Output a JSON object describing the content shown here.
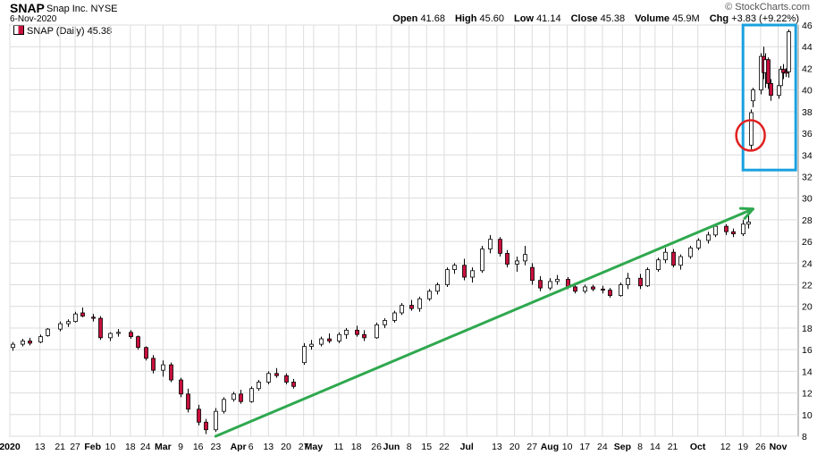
{
  "header": {
    "symbol": "SNAP",
    "company": "Snap Inc.",
    "exchange": "NYSE",
    "date": "6-Nov-2020",
    "copyright": "© StockCharts.com",
    "quote": [
      {
        "label": "Open",
        "value": "41.68"
      },
      {
        "label": "High",
        "value": "45.60"
      },
      {
        "label": "Low",
        "value": "41.14"
      },
      {
        "label": "Close",
        "value": "45.38"
      },
      {
        "label": "Volume",
        "value": "45.9M"
      },
      {
        "label": "Chg",
        "value": "+3.83 (+9.22%)"
      }
    ]
  },
  "legend": {
    "text": "SNAP (Daily) 45.38"
  },
  "colors": {
    "up": "#ffffff",
    "down": "#c8103d",
    "wick": "#000000",
    "arrow": "#2fa84f",
    "box": "#1aa1e0",
    "circle": "#e02020",
    "grid": "#dcdcdc"
  },
  "chart_data": {
    "type": "candlestick",
    "title": "SNAP Snap Inc. NYSE",
    "ylim": [
      8,
      46
    ],
    "y_ticks": [
      8,
      10,
      12,
      14,
      16,
      18,
      20,
      22,
      24,
      26,
      28,
      30,
      32,
      34,
      36,
      38,
      40,
      42,
      44,
      46
    ],
    "x_range": [
      "2020-01-01",
      "2020-11-10"
    ],
    "x_ticks": [
      {
        "label": "2020",
        "date": "2020-01-01",
        "bold": true
      },
      {
        "label": "13",
        "date": "2020-01-13"
      },
      {
        "label": "21",
        "date": "2020-01-21"
      },
      {
        "label": "27",
        "date": "2020-01-27"
      },
      {
        "label": "Feb",
        "date": "2020-02-03",
        "bold": true
      },
      {
        "label": "10",
        "date": "2020-02-10"
      },
      {
        "label": "18",
        "date": "2020-02-18"
      },
      {
        "label": "24",
        "date": "2020-02-24"
      },
      {
        "label": "Mar",
        "date": "2020-03-02",
        "bold": true
      },
      {
        "label": "9",
        "date": "2020-03-09"
      },
      {
        "label": "16",
        "date": "2020-03-16"
      },
      {
        "label": "23",
        "date": "2020-03-23"
      },
      {
        "label": "Apr",
        "date": "2020-04-01",
        "bold": true
      },
      {
        "label": "6",
        "date": "2020-04-06"
      },
      {
        "label": "13",
        "date": "2020-04-13"
      },
      {
        "label": "20",
        "date": "2020-04-20"
      },
      {
        "label": "27",
        "date": "2020-04-27"
      },
      {
        "label": "May",
        "date": "2020-05-01",
        "bold": true
      },
      {
        "label": "11",
        "date": "2020-05-11"
      },
      {
        "label": "18",
        "date": "2020-05-18"
      },
      {
        "label": "26",
        "date": "2020-05-26"
      },
      {
        "label": "Jun",
        "date": "2020-06-01",
        "bold": true
      },
      {
        "label": "8",
        "date": "2020-06-08"
      },
      {
        "label": "15",
        "date": "2020-06-15"
      },
      {
        "label": "22",
        "date": "2020-06-22"
      },
      {
        "label": "Jul",
        "date": "2020-07-01",
        "bold": true
      },
      {
        "label": "13",
        "date": "2020-07-13"
      },
      {
        "label": "20",
        "date": "2020-07-20"
      },
      {
        "label": "27",
        "date": "2020-07-27"
      },
      {
        "label": "Aug",
        "date": "2020-08-03",
        "bold": true
      },
      {
        "label": "10",
        "date": "2020-08-10"
      },
      {
        "label": "17",
        "date": "2020-08-17"
      },
      {
        "label": "24",
        "date": "2020-08-24"
      },
      {
        "label": "Sep",
        "date": "2020-09-01",
        "bold": true
      },
      {
        "label": "8",
        "date": "2020-09-08"
      },
      {
        "label": "14",
        "date": "2020-09-14"
      },
      {
        "label": "21",
        "date": "2020-09-21"
      },
      {
        "label": "Oct",
        "date": "2020-10-01",
        "bold": true
      },
      {
        "label": "12",
        "date": "2020-10-12"
      },
      {
        "label": "19",
        "date": "2020-10-19"
      },
      {
        "label": "26",
        "date": "2020-10-26"
      },
      {
        "label": "Nov",
        "date": "2020-11-02",
        "bold": true
      }
    ],
    "grid": true,
    "candles": [
      {
        "date": "2020-01-02",
        "open": 16.2,
        "high": 16.7,
        "low": 15.9,
        "close": 16.5
      },
      {
        "date": "2020-01-06",
        "open": 16.5,
        "high": 17.0,
        "low": 16.3,
        "close": 16.8
      },
      {
        "date": "2020-01-09",
        "open": 16.8,
        "high": 17.1,
        "low": 16.4,
        "close": 16.6
      },
      {
        "date": "2020-01-13",
        "open": 16.7,
        "high": 17.4,
        "low": 16.6,
        "close": 17.2
      },
      {
        "date": "2020-01-16",
        "open": 17.3,
        "high": 18.0,
        "low": 17.2,
        "close": 17.9
      },
      {
        "date": "2020-01-21",
        "open": 17.9,
        "high": 18.6,
        "low": 17.7,
        "close": 18.4
      },
      {
        "date": "2020-01-24",
        "open": 18.4,
        "high": 18.8,
        "low": 18.1,
        "close": 18.6
      },
      {
        "date": "2020-01-27",
        "open": 18.6,
        "high": 19.5,
        "low": 18.5,
        "close": 19.3
      },
      {
        "date": "2020-01-30",
        "open": 19.4,
        "high": 19.9,
        "low": 19.0,
        "close": 19.1
      },
      {
        "date": "2020-02-03",
        "open": 19.0,
        "high": 19.3,
        "low": 18.6,
        "close": 18.9
      },
      {
        "date": "2020-02-06",
        "open": 18.9,
        "high": 19.1,
        "low": 16.9,
        "close": 17.1
      },
      {
        "date": "2020-02-10",
        "open": 17.1,
        "high": 17.6,
        "low": 16.8,
        "close": 17.5
      },
      {
        "date": "2020-02-13",
        "open": 17.5,
        "high": 17.9,
        "low": 17.2,
        "close": 17.6
      },
      {
        "date": "2020-02-18",
        "open": 17.6,
        "high": 17.8,
        "low": 17.0,
        "close": 17.2
      },
      {
        "date": "2020-02-21",
        "open": 17.2,
        "high": 17.3,
        "low": 16.0,
        "close": 16.2
      },
      {
        "date": "2020-02-24",
        "open": 16.2,
        "high": 16.3,
        "low": 15.0,
        "close": 15.2
      },
      {
        "date": "2020-02-27",
        "open": 15.2,
        "high": 15.5,
        "low": 13.8,
        "close": 14.1
      },
      {
        "date": "2020-03-02",
        "open": 14.1,
        "high": 15.0,
        "low": 13.5,
        "close": 14.6
      },
      {
        "date": "2020-03-05",
        "open": 14.6,
        "high": 14.8,
        "low": 13.0,
        "close": 13.2
      },
      {
        "date": "2020-03-09",
        "open": 13.2,
        "high": 13.4,
        "low": 11.6,
        "close": 11.9
      },
      {
        "date": "2020-03-12",
        "open": 11.9,
        "high": 12.4,
        "low": 10.2,
        "close": 10.5
      },
      {
        "date": "2020-03-16",
        "open": 10.5,
        "high": 10.9,
        "low": 9.0,
        "close": 9.3
      },
      {
        "date": "2020-03-19",
        "open": 9.3,
        "high": 9.6,
        "low": 8.2,
        "close": 8.6
      },
      {
        "date": "2020-03-23",
        "open": 8.6,
        "high": 10.6,
        "low": 8.4,
        "close": 10.3
      },
      {
        "date": "2020-03-26",
        "open": 10.3,
        "high": 11.6,
        "low": 10.1,
        "close": 11.4
      },
      {
        "date": "2020-03-30",
        "open": 11.4,
        "high": 12.1,
        "low": 11.2,
        "close": 11.9
      },
      {
        "date": "2020-04-02",
        "open": 11.9,
        "high": 12.3,
        "low": 11.0,
        "close": 11.2
      },
      {
        "date": "2020-04-06",
        "open": 11.2,
        "high": 12.6,
        "low": 11.1,
        "close": 12.4
      },
      {
        "date": "2020-04-09",
        "open": 12.4,
        "high": 13.2,
        "low": 12.2,
        "close": 13.0
      },
      {
        "date": "2020-04-13",
        "open": 13.0,
        "high": 14.0,
        "low": 12.8,
        "close": 13.8
      },
      {
        "date": "2020-04-16",
        "open": 13.8,
        "high": 14.3,
        "low": 13.4,
        "close": 13.6
      },
      {
        "date": "2020-04-20",
        "open": 13.6,
        "high": 13.8,
        "low": 12.8,
        "close": 13.0
      },
      {
        "date": "2020-04-23",
        "open": 13.0,
        "high": 13.3,
        "low": 12.4,
        "close": 12.6
      },
      {
        "date": "2020-04-27",
        "open": 14.8,
        "high": 16.6,
        "low": 14.6,
        "close": 16.3
      },
      {
        "date": "2020-04-30",
        "open": 16.3,
        "high": 16.9,
        "low": 16.0,
        "close": 16.5
      },
      {
        "date": "2020-05-04",
        "open": 16.5,
        "high": 17.2,
        "low": 16.3,
        "close": 17.0
      },
      {
        "date": "2020-05-07",
        "open": 17.0,
        "high": 17.5,
        "low": 16.6,
        "close": 16.8
      },
      {
        "date": "2020-05-11",
        "open": 16.8,
        "high": 17.6,
        "low": 16.6,
        "close": 17.4
      },
      {
        "date": "2020-05-14",
        "open": 17.4,
        "high": 18.0,
        "low": 17.0,
        "close": 17.8
      },
      {
        "date": "2020-05-18",
        "open": 17.8,
        "high": 18.2,
        "low": 17.2,
        "close": 17.4
      },
      {
        "date": "2020-05-21",
        "open": 17.4,
        "high": 17.8,
        "low": 16.8,
        "close": 17.1
      },
      {
        "date": "2020-05-26",
        "open": 17.1,
        "high": 18.5,
        "low": 17.0,
        "close": 18.3
      },
      {
        "date": "2020-05-29",
        "open": 18.3,
        "high": 18.9,
        "low": 18.0,
        "close": 18.7
      },
      {
        "date": "2020-06-02",
        "open": 18.7,
        "high": 19.6,
        "low": 18.5,
        "close": 19.4
      },
      {
        "date": "2020-06-05",
        "open": 19.4,
        "high": 20.3,
        "low": 19.2,
        "close": 20.1
      },
      {
        "date": "2020-06-09",
        "open": 20.1,
        "high": 20.6,
        "low": 19.6,
        "close": 19.8
      },
      {
        "date": "2020-06-12",
        "open": 19.8,
        "high": 20.9,
        "low": 19.5,
        "close": 20.7
      },
      {
        "date": "2020-06-16",
        "open": 20.7,
        "high": 21.6,
        "low": 20.5,
        "close": 21.4
      },
      {
        "date": "2020-06-19",
        "open": 21.4,
        "high": 22.2,
        "low": 21.1,
        "close": 22.0
      },
      {
        "date": "2020-06-23",
        "open": 22.0,
        "high": 23.6,
        "low": 21.8,
        "close": 23.4
      },
      {
        "date": "2020-06-26",
        "open": 23.4,
        "high": 24.0,
        "low": 23.0,
        "close": 23.8
      },
      {
        "date": "2020-06-30",
        "open": 23.8,
        "high": 24.4,
        "low": 22.4,
        "close": 22.7
      },
      {
        "date": "2020-07-03",
        "open": 22.7,
        "high": 23.6,
        "low": 22.2,
        "close": 23.3
      },
      {
        "date": "2020-07-07",
        "open": 23.3,
        "high": 25.6,
        "low": 23.1,
        "close": 25.3
      },
      {
        "date": "2020-07-10",
        "open": 25.3,
        "high": 26.6,
        "low": 24.9,
        "close": 26.2
      },
      {
        "date": "2020-07-14",
        "open": 26.2,
        "high": 26.4,
        "low": 24.6,
        "close": 24.9
      },
      {
        "date": "2020-07-17",
        "open": 24.9,
        "high": 25.2,
        "low": 23.6,
        "close": 23.9
      },
      {
        "date": "2020-07-21",
        "open": 23.9,
        "high": 24.6,
        "low": 23.2,
        "close": 24.2
      },
      {
        "date": "2020-07-24",
        "open": 24.2,
        "high": 25.6,
        "low": 23.8,
        "close": 24.8
      },
      {
        "date": "2020-07-27",
        "open": 23.6,
        "high": 24.0,
        "low": 22.0,
        "close": 22.4
      },
      {
        "date": "2020-07-30",
        "open": 22.4,
        "high": 22.8,
        "low": 21.4,
        "close": 21.7
      },
      {
        "date": "2020-08-03",
        "open": 21.7,
        "high": 22.6,
        "low": 21.5,
        "close": 22.3
      },
      {
        "date": "2020-08-06",
        "open": 22.3,
        "high": 22.9,
        "low": 22.0,
        "close": 22.5
      },
      {
        "date": "2020-08-10",
        "open": 22.5,
        "high": 22.7,
        "low": 21.6,
        "close": 21.8
      },
      {
        "date": "2020-08-13",
        "open": 21.8,
        "high": 22.1,
        "low": 21.2,
        "close": 21.4
      },
      {
        "date": "2020-08-17",
        "open": 21.4,
        "high": 22.0,
        "low": 21.2,
        "close": 21.8
      },
      {
        "date": "2020-08-20",
        "open": 21.8,
        "high": 22.0,
        "low": 21.4,
        "close": 21.6
      },
      {
        "date": "2020-08-24",
        "open": 21.6,
        "high": 21.9,
        "low": 21.2,
        "close": 21.5
      },
      {
        "date": "2020-08-27",
        "open": 21.5,
        "high": 21.7,
        "low": 20.8,
        "close": 21.0
      },
      {
        "date": "2020-08-31",
        "open": 21.0,
        "high": 22.2,
        "low": 20.9,
        "close": 22.0
      },
      {
        "date": "2020-09-03",
        "open": 22.0,
        "high": 23.1,
        "low": 21.6,
        "close": 22.6
      },
      {
        "date": "2020-09-08",
        "open": 22.6,
        "high": 23.0,
        "low": 21.6,
        "close": 21.9
      },
      {
        "date": "2020-09-11",
        "open": 21.9,
        "high": 23.6,
        "low": 21.8,
        "close": 23.4
      },
      {
        "date": "2020-09-15",
        "open": 23.4,
        "high": 24.5,
        "low": 23.2,
        "close": 24.3
      },
      {
        "date": "2020-09-18",
        "open": 24.3,
        "high": 25.4,
        "low": 24.0,
        "close": 25.0
      },
      {
        "date": "2020-09-21",
        "open": 25.0,
        "high": 25.3,
        "low": 23.6,
        "close": 23.8
      },
      {
        "date": "2020-09-24",
        "open": 23.8,
        "high": 24.8,
        "low": 23.4,
        "close": 24.6
      },
      {
        "date": "2020-09-28",
        "open": 24.6,
        "high": 25.6,
        "low": 24.4,
        "close": 25.4
      },
      {
        "date": "2020-10-01",
        "open": 25.4,
        "high": 26.3,
        "low": 25.2,
        "close": 26.1
      },
      {
        "date": "2020-10-05",
        "open": 26.1,
        "high": 26.9,
        "low": 25.8,
        "close": 26.6
      },
      {
        "date": "2020-10-08",
        "open": 26.6,
        "high": 27.6,
        "low": 26.4,
        "close": 27.4
      },
      {
        "date": "2020-10-12",
        "open": 27.4,
        "high": 27.6,
        "low": 26.6,
        "close": 26.9
      },
      {
        "date": "2020-10-15",
        "open": 26.9,
        "high": 27.2,
        "low": 26.4,
        "close": 26.7
      },
      {
        "date": "2020-10-19",
        "open": 26.7,
        "high": 28.0,
        "low": 26.5,
        "close": 27.6
      },
      {
        "date": "2020-10-21",
        "open": 27.6,
        "high": 28.4,
        "low": 27.2,
        "close": 27.8
      },
      {
        "date": "2020-10-22",
        "open": 34.9,
        "high": 38.2,
        "low": 34.5,
        "close": 37.9
      },
      {
        "date": "2020-10-23",
        "open": 39.0,
        "high": 40.2,
        "low": 38.4,
        "close": 40.0
      },
      {
        "date": "2020-10-26",
        "open": 40.0,
        "high": 43.4,
        "low": 39.6,
        "close": 43.1
      },
      {
        "date": "2020-10-27",
        "open": 43.1,
        "high": 44.0,
        "low": 41.0,
        "close": 41.6
      },
      {
        "date": "2020-10-28",
        "open": 41.6,
        "high": 43.4,
        "low": 40.2,
        "close": 42.8
      },
      {
        "date": "2020-10-29",
        "open": 42.8,
        "high": 43.0,
        "low": 40.1,
        "close": 40.6
      },
      {
        "date": "2020-10-30",
        "open": 40.6,
        "high": 41.0,
        "low": 39.0,
        "close": 39.5
      },
      {
        "date": "2020-11-02",
        "open": 39.5,
        "high": 40.8,
        "low": 39.2,
        "close": 40.4
      },
      {
        "date": "2020-11-03",
        "open": 40.4,
        "high": 42.2,
        "low": 40.2,
        "close": 41.9
      },
      {
        "date": "2020-11-04",
        "open": 41.9,
        "high": 42.4,
        "low": 41.0,
        "close": 41.6
      },
      {
        "date": "2020-11-05",
        "open": 41.7,
        "high": 42.0,
        "low": 41.2,
        "close": 41.55
      },
      {
        "date": "2020-11-06",
        "open": 41.68,
        "high": 45.6,
        "low": 41.14,
        "close": 45.38
      }
    ],
    "annotations": {
      "trend_arrow": {
        "from": {
          "date": "2020-03-23",
          "value": 8.0
        },
        "to": {
          "date": "2020-10-23",
          "value": 29.0
        }
      },
      "highlight_box": {
        "from_date": "2020-10-19",
        "to_date": "2020-11-09",
        "ylim": [
          32.6,
          46.0
        ]
      },
      "circle": {
        "date": "2020-10-22",
        "value": 35.8
      }
    }
  }
}
